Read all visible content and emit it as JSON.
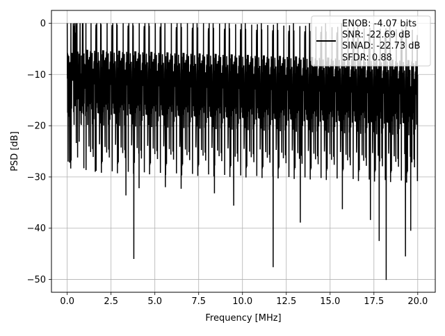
{
  "chart_data": {
    "type": "line",
    "title": "",
    "xlabel": "Frequency [MHz]",
    "ylabel": "PSD [dB]",
    "xlim": [
      -0.9,
      21.0
    ],
    "ylim": [
      -52.5,
      2.5
    ],
    "xticks": [
      0.0,
      2.5,
      5.0,
      7.5,
      10.0,
      12.5,
      15.0,
      17.5,
      20.0
    ],
    "xtick_labels": [
      "0.0",
      "2.5",
      "5.0",
      "7.5",
      "10.0",
      "12.5",
      "15.0",
      "17.5",
      "20.0"
    ],
    "yticks": [
      0,
      -10,
      -20,
      -30,
      -40,
      -50
    ],
    "ytick_labels": [
      "0",
      "−10",
      "−20",
      "−30",
      "−40",
      "−50"
    ],
    "grid": true,
    "legend_position": "top-right",
    "legend_entries": [
      "ENOB: -4.07 bits",
      "SNR: -22.69 dB",
      "SINAD: -22.73 dB",
      "SFDR: 0.88"
    ],
    "series": [
      {
        "color": "#000000",
        "x_range": [
          0.0,
          20.0
        ],
        "typical_range_db": [
          -20,
          -5
        ],
        "max_db": 0.0,
        "deep_dips": [
          {
            "x": 0.05,
            "y": -27.0
          },
          {
            "x": 0.95,
            "y": -28.3
          },
          {
            "x": 1.6,
            "y": -29.0
          },
          {
            "x": 3.35,
            "y": -33.6
          },
          {
            "x": 3.8,
            "y": -46.0
          },
          {
            "x": 4.1,
            "y": -32.2
          },
          {
            "x": 5.6,
            "y": -32.0
          },
          {
            "x": 6.5,
            "y": -32.3
          },
          {
            "x": 8.4,
            "y": -33.2
          },
          {
            "x": 9.5,
            "y": -35.6
          },
          {
            "x": 11.75,
            "y": -47.6
          },
          {
            "x": 13.3,
            "y": -38.9
          },
          {
            "x": 15.7,
            "y": -36.3
          },
          {
            "x": 17.3,
            "y": -38.4
          },
          {
            "x": 17.8,
            "y": -42.5
          },
          {
            "x": 18.2,
            "y": -50.1
          },
          {
            "x": 19.3,
            "y": -45.5
          },
          {
            "x": 19.6,
            "y": -40.5
          }
        ]
      }
    ]
  }
}
